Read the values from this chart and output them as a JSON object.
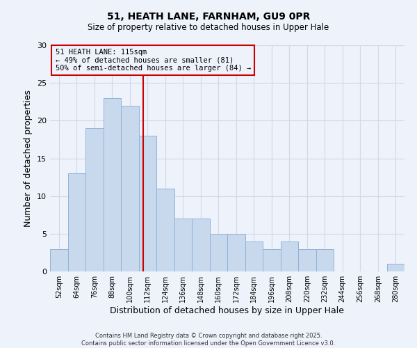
{
  "title": "51, HEATH LANE, FARNHAM, GU9 0PR",
  "subtitle": "Size of property relative to detached houses in Upper Hale",
  "xlabel": "Distribution of detached houses by size in Upper Hale",
  "ylabel": "Number of detached properties",
  "bar_color": "#c8d9ee",
  "bar_edge_color": "#8fb3d9",
  "background_color": "#eef2fb",
  "grid_color": "#d0d8e8",
  "bins": [
    52,
    64,
    76,
    88,
    100,
    112,
    124,
    136,
    148,
    160,
    172,
    184,
    196,
    208,
    220,
    232,
    244,
    256,
    268,
    280,
    292
  ],
  "counts": [
    3,
    13,
    19,
    23,
    22,
    18,
    11,
    7,
    7,
    5,
    5,
    4,
    3,
    4,
    3,
    3,
    0,
    0,
    0,
    1
  ],
  "property_size": 115,
  "vline_color": "#cc0000",
  "annotation_line1": "51 HEATH LANE: 115sqm",
  "annotation_line2": "← 49% of detached houses are smaller (81)",
  "annotation_line3": "50% of semi-detached houses are larger (84) →",
  "annotation_box_edge": "#cc0000",
  "ylim": [
    0,
    30
  ],
  "yticks": [
    0,
    5,
    10,
    15,
    20,
    25,
    30
  ],
  "footer_line1": "Contains HM Land Registry data © Crown copyright and database right 2025.",
  "footer_line2": "Contains public sector information licensed under the Open Government Licence v3.0."
}
